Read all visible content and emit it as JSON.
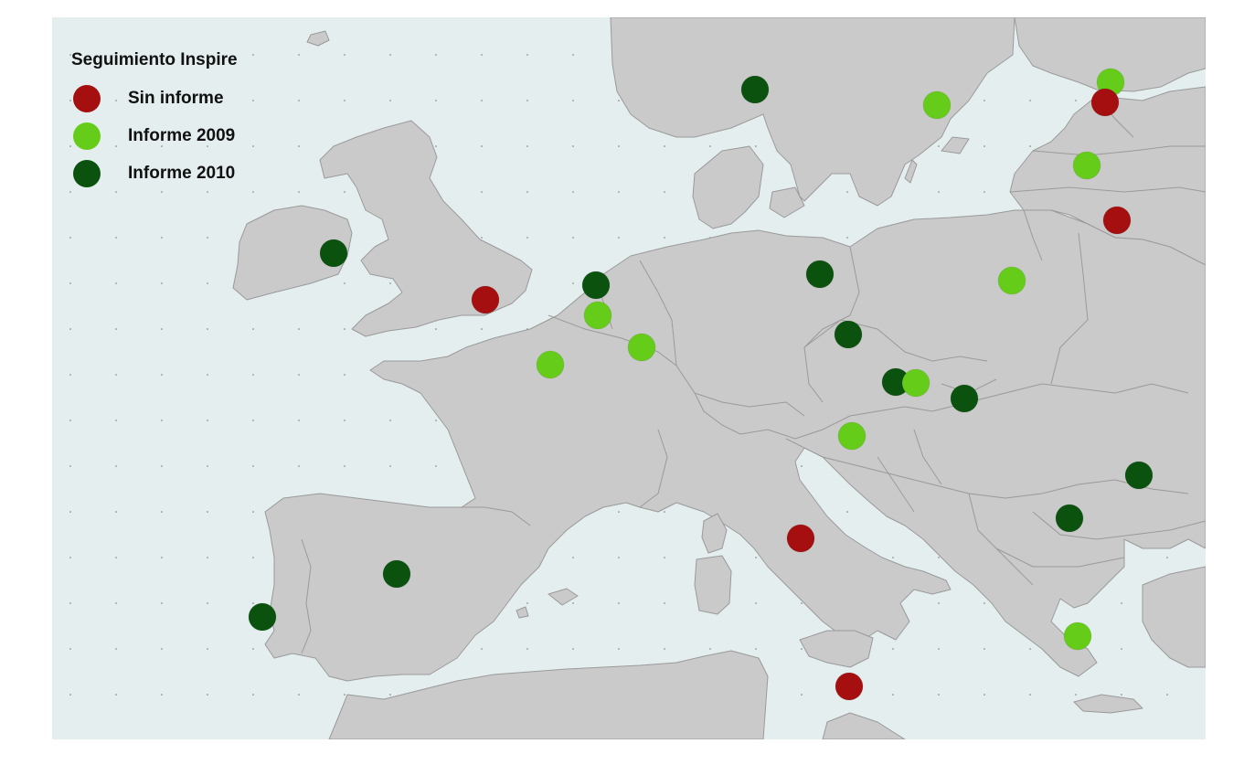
{
  "legend": {
    "title": "Seguimiento Inspire",
    "items": [
      {
        "key": "sin",
        "label": "Sin informe",
        "color": "#a50f0f"
      },
      {
        "key": "2009",
        "label": "Informe 2009",
        "color": "#66cc1a"
      },
      {
        "key": "2010",
        "label": "Informe 2010",
        "color": "#0b520f"
      }
    ]
  },
  "colors": {
    "sea": "#e4eeef",
    "land": "#cacaca",
    "border": "#9a9a9a"
  },
  "markers": [
    {
      "country": "Ireland",
      "status": "2010"
    },
    {
      "country": "United Kingdom",
      "status": "sin"
    },
    {
      "country": "Netherlands",
      "status": "2010"
    },
    {
      "country": "Belgium",
      "status": "2009"
    },
    {
      "country": "Luxembourg",
      "status": "2009"
    },
    {
      "country": "France",
      "status": "2009"
    },
    {
      "country": "Norway",
      "status": "2010"
    },
    {
      "country": "Finland",
      "status": "2009"
    },
    {
      "country": "Estonia",
      "status": "2009"
    },
    {
      "country": "Estonia (Tallinn)",
      "status": "sin"
    },
    {
      "country": "Latvia",
      "status": "2009"
    },
    {
      "country": "Lithuania",
      "status": "sin"
    },
    {
      "country": "Germany",
      "status": "2010"
    },
    {
      "country": "Poland",
      "status": "2009"
    },
    {
      "country": "Czech Republic",
      "status": "2010"
    },
    {
      "country": "Austria",
      "status": "2010"
    },
    {
      "country": "Slovakia",
      "status": "2009"
    },
    {
      "country": "Hungary",
      "status": "2010"
    },
    {
      "country": "Slovenia",
      "status": "2009"
    },
    {
      "country": "Romania",
      "status": "2010"
    },
    {
      "country": "Bulgaria",
      "status": "2010"
    },
    {
      "country": "Italy",
      "status": "sin"
    },
    {
      "country": "Spain",
      "status": "2010"
    },
    {
      "country": "Portugal",
      "status": "2010"
    },
    {
      "country": "Greece",
      "status": "2009"
    },
    {
      "country": "Malta",
      "status": "sin"
    }
  ]
}
